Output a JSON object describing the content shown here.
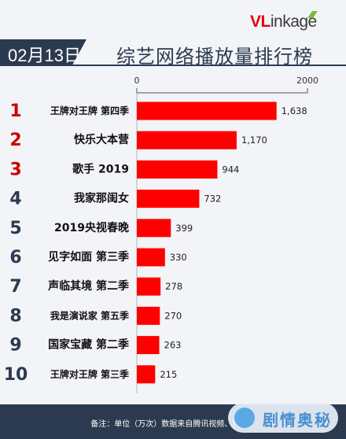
{
  "header": {
    "logo_v": "V",
    "logo_l": "L",
    "logo_rest_1": "ink",
    "logo_rest_2": "age",
    "date": "02月13日",
    "title": "综艺网络播放量排行榜"
  },
  "footer": {
    "note": "备注：单位（万次）数据来自腾讯视频、搜狐...",
    "watermark": "剧情奥秘"
  },
  "colors": {
    "bar": "#ff0000",
    "rank_top": "#cc0000",
    "rank_other": "#2c3a4f",
    "navy": "#2c3a4f"
  },
  "chart_data": {
    "type": "bar",
    "orientation": "horizontal",
    "axis_ticks": [
      "0",
      "2000"
    ],
    "xlim": [
      0,
      2000
    ],
    "ranks": [
      "1",
      "2",
      "3",
      "4",
      "5",
      "6",
      "7",
      "8",
      "9",
      "10"
    ],
    "categories": [
      "王牌对王牌 第四季",
      "快乐大本营",
      "歌手 2019",
      "我家那闺女",
      "2019央视春晚",
      "见字如面 第三季",
      "声临其境 第二季",
      "我是演说家 第五季",
      "国家宝藏 第二季",
      "王牌对王牌 第三季"
    ],
    "values": [
      1638,
      1170,
      944,
      732,
      399,
      330,
      278,
      270,
      263,
      215
    ],
    "value_labels": [
      "1,638",
      "1,170",
      "944",
      "732",
      "399",
      "330",
      "278",
      "270",
      "263",
      "215"
    ]
  }
}
